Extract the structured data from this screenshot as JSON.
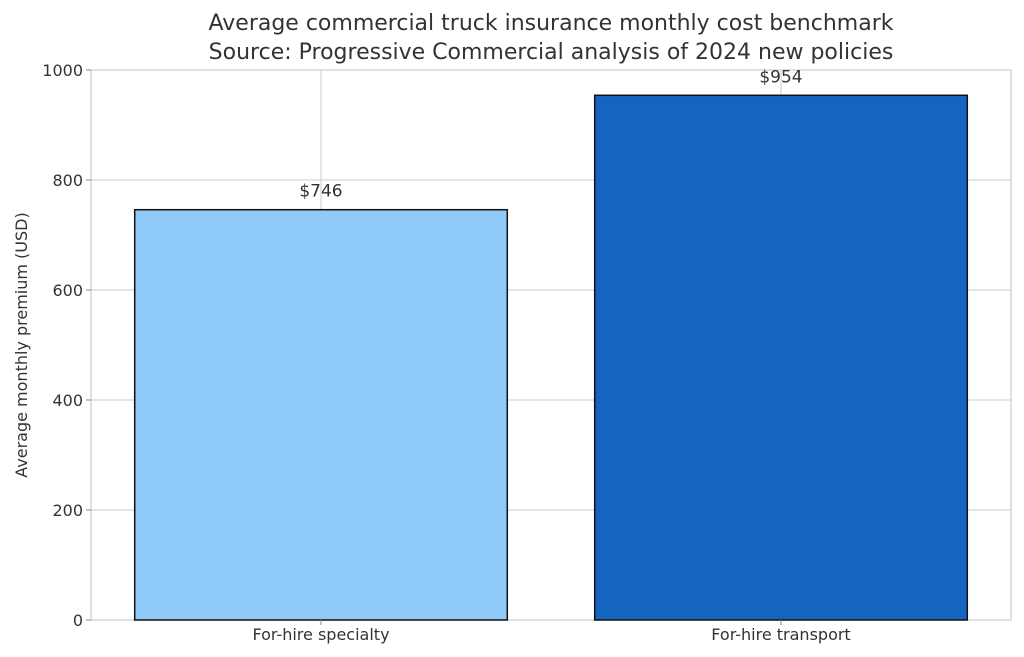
{
  "chart_data": {
    "type": "bar",
    "title": "Average commercial truck insurance monthly cost benchmark",
    "subtitle": "Source: Progressive Commercial analysis of 2024 new policies",
    "xlabel": "",
    "ylabel": "Average monthly premium (USD)",
    "categories": [
      "For-hire specialty",
      "For-hire transport"
    ],
    "values": [
      746,
      954
    ],
    "data_labels": [
      "$746",
      "$954"
    ],
    "colors": [
      "#90CAF9",
      "#1565C0"
    ],
    "edge_color": "#111111",
    "ylim": [
      0,
      1000
    ],
    "yticks": [
      0,
      200,
      400,
      600,
      800,
      1000
    ],
    "grid": true
  }
}
